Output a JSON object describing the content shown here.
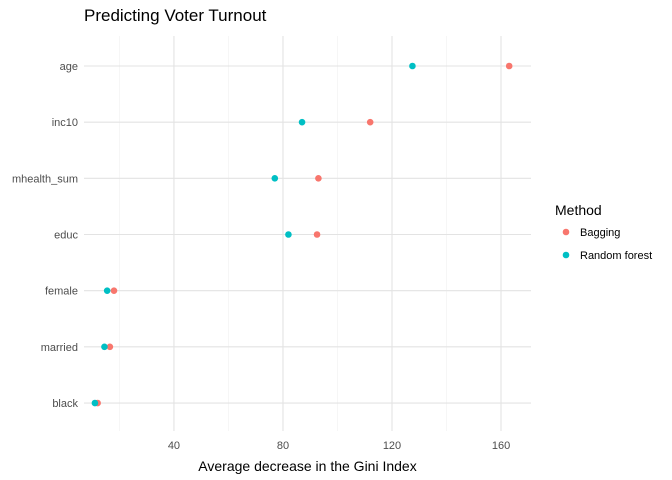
{
  "chart_data": {
    "type": "scatter",
    "title": "Predicting Voter Turnout",
    "xlabel": "Average decrease in the Gini Index",
    "ylabel": "",
    "xlim": [
      7,
      171
    ],
    "x_ticks": [
      40,
      80,
      120,
      160
    ],
    "categories": [
      "age",
      "inc10",
      "mhealth_sum",
      "educ",
      "female",
      "married",
      "black"
    ],
    "legend": {
      "title": "Method",
      "position": "right"
    },
    "grid": true,
    "series": [
      {
        "name": "Bagging",
        "color": "#F8766D",
        "values": [
          163,
          112,
          93,
          92.5,
          18,
          16.5,
          12
        ]
      },
      {
        "name": "Random forest",
        "color": "#00BFC4",
        "values": [
          127.5,
          87,
          77,
          82,
          15.5,
          14.5,
          11
        ]
      }
    ]
  }
}
